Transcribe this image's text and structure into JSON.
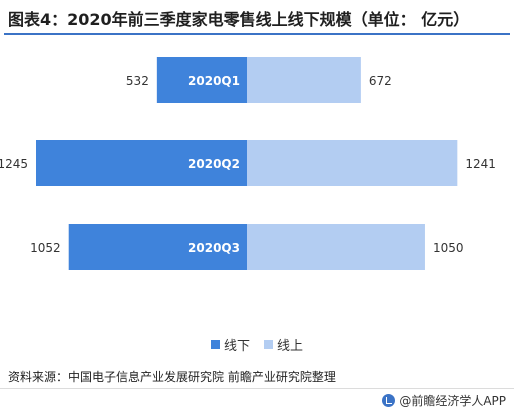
{
  "title": "图表4：2020年前三季度家电零售线上线下规模（单位： 亿元）",
  "source": "资料来源：中国电子信息产业发展研究院 前瞻产业研究院整理",
  "brand": "@前瞻经济学人APP",
  "colors": {
    "offline": "#3f83db",
    "online": "#b3cdf2",
    "accent": "#3b73c6"
  },
  "chart_data": {
    "type": "bar",
    "orientation": "horizontal-diverging",
    "categories": [
      "2020Q1",
      "2020Q2",
      "2020Q3"
    ],
    "series": [
      {
        "name": "线下",
        "values": [
          532,
          1245,
          1052
        ]
      },
      {
        "name": "线上",
        "values": [
          672,
          1241,
          1050
        ]
      }
    ],
    "legend": "bottom-center"
  }
}
